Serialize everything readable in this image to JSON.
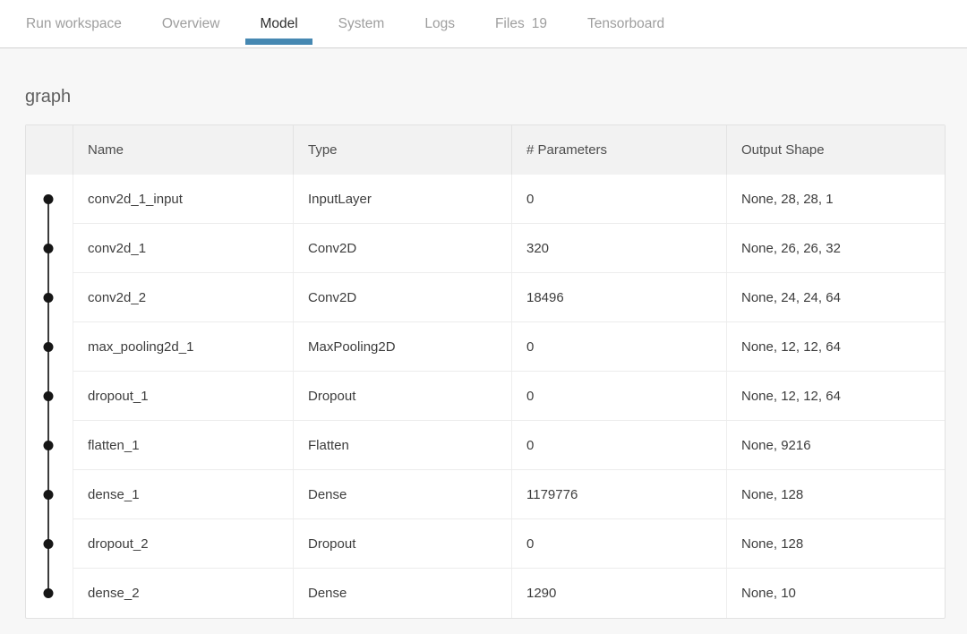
{
  "tabs": {
    "items": [
      {
        "label": "Run workspace",
        "active": false
      },
      {
        "label": "Overview",
        "active": false
      },
      {
        "label": "Model",
        "active": true
      },
      {
        "label": "System",
        "active": false
      },
      {
        "label": "Logs",
        "active": false
      },
      {
        "label": "Files",
        "count": "19",
        "active": false
      },
      {
        "label": "Tensorboard",
        "active": false
      }
    ]
  },
  "section": {
    "title": "graph"
  },
  "table": {
    "columns": [
      "Name",
      "Type",
      "# Parameters",
      "Output Shape"
    ],
    "rows": [
      {
        "name": "conv2d_1_input",
        "type": "InputLayer",
        "params": "0",
        "output_shape": "None, 28, 28, 1"
      },
      {
        "name": "conv2d_1",
        "type": "Conv2D",
        "params": "320",
        "output_shape": "None, 26, 26, 32"
      },
      {
        "name": "conv2d_2",
        "type": "Conv2D",
        "params": "18496",
        "output_shape": "None, 24, 24, 64"
      },
      {
        "name": "max_pooling2d_1",
        "type": "MaxPooling2D",
        "params": "0",
        "output_shape": "None, 12, 12, 64"
      },
      {
        "name": "dropout_1",
        "type": "Dropout",
        "params": "0",
        "output_shape": "None, 12, 12, 64"
      },
      {
        "name": "flatten_1",
        "type": "Flatten",
        "params": "0",
        "output_shape": "None, 9216"
      },
      {
        "name": "dense_1",
        "type": "Dense",
        "params": "1179776",
        "output_shape": "None, 128"
      },
      {
        "name": "dropout_2",
        "type": "Dropout",
        "params": "0",
        "output_shape": "None, 128"
      },
      {
        "name": "dense_2",
        "type": "Dense",
        "params": "1290",
        "output_shape": "None, 10"
      }
    ]
  },
  "colors": {
    "accent": "#4688b2",
    "node_dot": "#161616",
    "edge_line": "#3c3c3c"
  }
}
